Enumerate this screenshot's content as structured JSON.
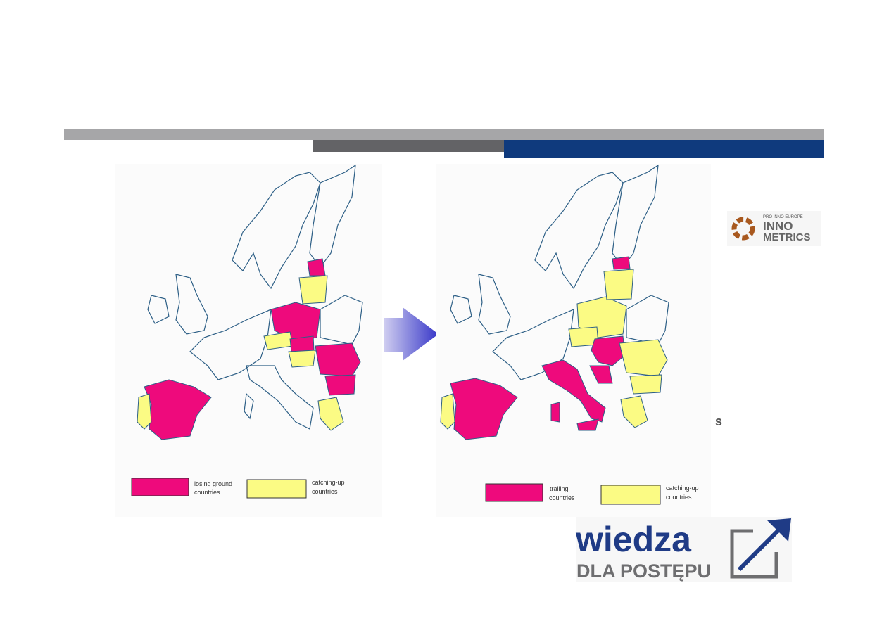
{
  "legend_left": [
    {
      "label": [
        "losing ground",
        "countries"
      ]
    },
    {
      "label": [
        "catching-up",
        "countries"
      ]
    }
  ],
  "legend_right": [
    {
      "label": [
        "trailing",
        "countries"
      ]
    },
    {
      "label": [
        "catching-up",
        "countries"
      ]
    }
  ],
  "innometrics_logo": {
    "top": "PRO INNO EUROPE",
    "line1": "INNO",
    "line2": "METRICS"
  },
  "wiedza_logo": {
    "word": "wiedza",
    "tagline": "DLA POSTĘPU"
  },
  "fragment": "s"
}
